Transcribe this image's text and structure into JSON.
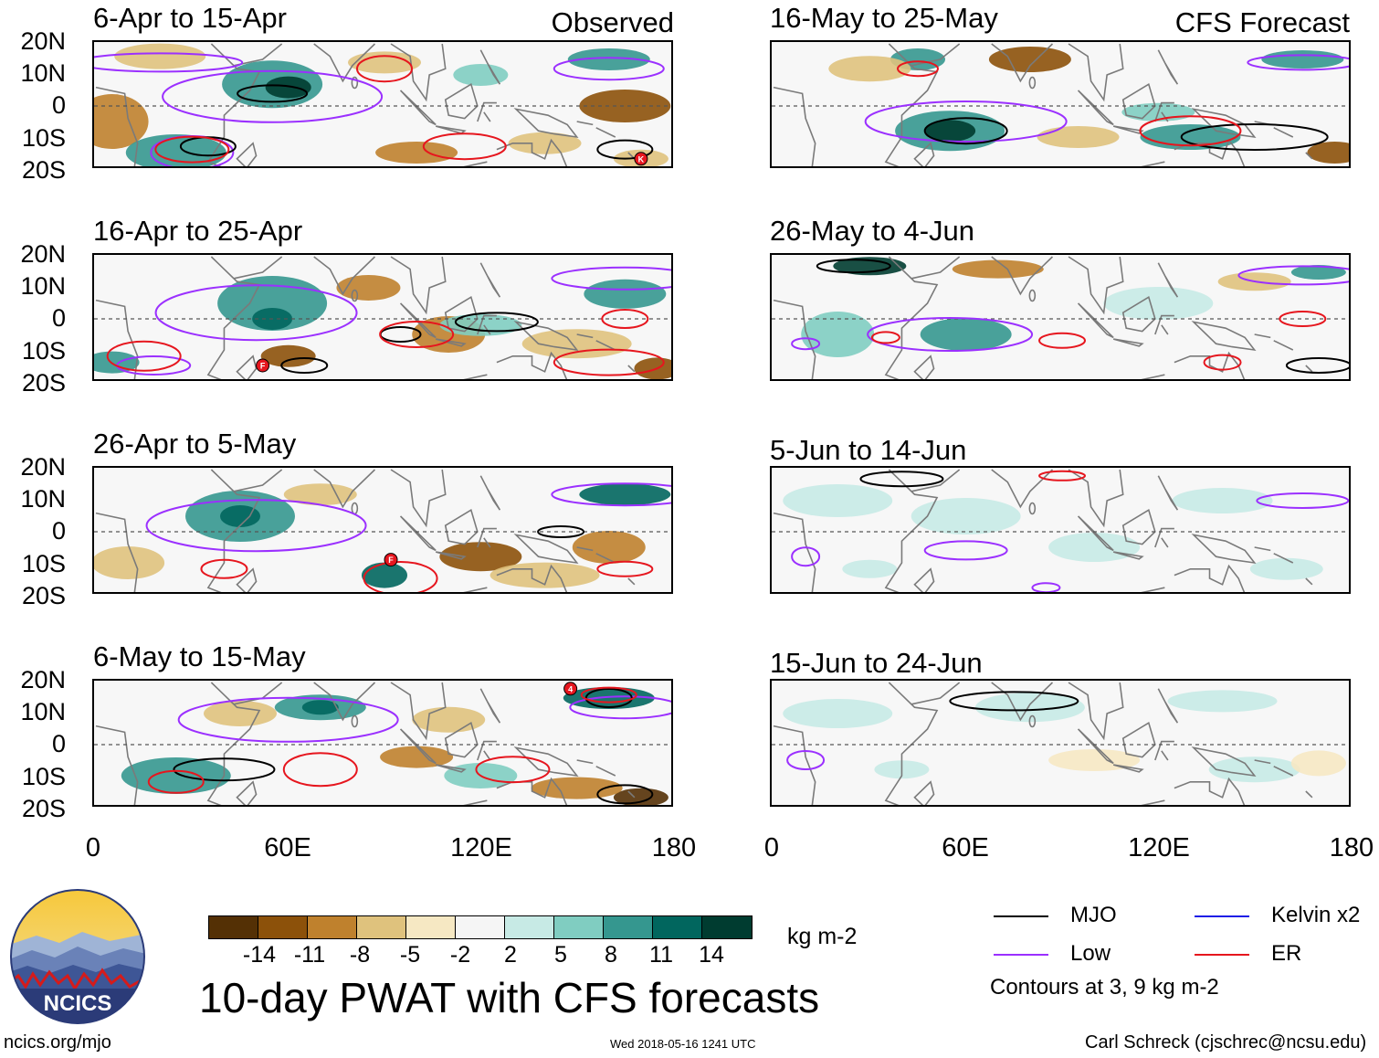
{
  "colors": {
    "mjo": "#000000",
    "low": "#9b30ff",
    "kelvin": "#1e1ee6",
    "er": "#e6161e",
    "land": "#7a7a7a",
    "colorbar": [
      "#543005",
      "#8c510a",
      "#bf812d",
      "#dfc27d",
      "#f6e8c3",
      "#f5f5f5",
      "#c7eae5",
      "#80cdc1",
      "#35978f",
      "#01665e",
      "#003c30"
    ]
  },
  "headers": {
    "observed": "Observed",
    "forecast": "CFS Forecast"
  },
  "axes": {
    "lat_labels": [
      "20N",
      "10N",
      "0",
      "10S",
      "20S"
    ],
    "lon_labels": [
      "0",
      "60E",
      "120E",
      "180"
    ]
  },
  "panels": [
    {
      "title": "6-Apr to 15-Apr",
      "column": "observed"
    },
    {
      "title": "16-Apr to 25-Apr",
      "column": "observed"
    },
    {
      "title": "26-Apr to 5-May",
      "column": "observed"
    },
    {
      "title": "6-May to 15-May",
      "column": "observed"
    },
    {
      "title": "16-May to 25-May",
      "column": "forecast"
    },
    {
      "title": "26-May to 4-Jun",
      "column": "forecast"
    },
    {
      "title": "5-Jun to 14-Jun",
      "column": "forecast"
    },
    {
      "title": "15-Jun to 24-Jun",
      "column": "forecast"
    }
  ],
  "colorbar": {
    "labels": [
      "-14",
      "-11",
      "-8",
      "-5",
      "-2",
      "2",
      "5",
      "8",
      "11",
      "14"
    ],
    "units": "kg m-2"
  },
  "legend": {
    "mjo": "MJO",
    "kelvin": "Kelvin x2",
    "low": "Low",
    "er": "ER",
    "note": "Contours at 3, 9 kg m-2"
  },
  "storm_markers": [
    "K",
    "F",
    "F",
    "4"
  ],
  "logo_text": "NCICS",
  "main_title": "10-day PWAT with CFS forecasts",
  "footer": {
    "url": "ncics.org/mjo",
    "timestamp": "Wed 2018-05-16 1241 UTC",
    "credit": "Carl Schreck (cjschrec@ncsu.edu)"
  }
}
